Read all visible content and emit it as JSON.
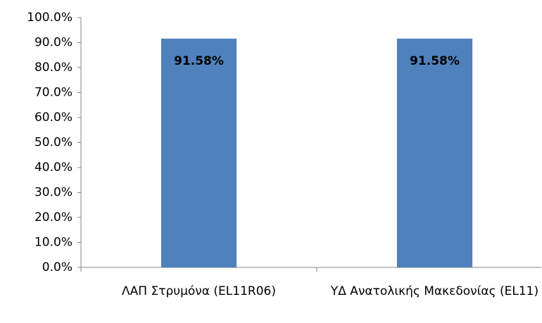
{
  "chart_data": {
    "type": "bar",
    "categories": [
      "ΛΑΠ Στρυμόνα (EL11R06)",
      "ΥΔ Ανατολικής Μακεδονίας (EL11)"
    ],
    "values": [
      91.58,
      91.58
    ],
    "value_labels": [
      "91.58%",
      "91.58%"
    ],
    "color": "#4f81bd",
    "ylim": [
      0,
      100
    ],
    "yticks": [
      {
        "value": 0,
        "label": "0.0%"
      },
      {
        "value": 10,
        "label": "10.0%"
      },
      {
        "value": 20,
        "label": "20.0%"
      },
      {
        "value": 30,
        "label": "30.0%"
      },
      {
        "value": 40,
        "label": "40.0%"
      },
      {
        "value": 50,
        "label": "50.0%"
      },
      {
        "value": 60,
        "label": "60.0%"
      },
      {
        "value": 70,
        "label": "70.0%"
      },
      {
        "value": 80,
        "label": "80.0%"
      },
      {
        "value": 90,
        "label": "90.0%"
      },
      {
        "value": 100,
        "label": "100.0%"
      }
    ],
    "grid": false
  }
}
